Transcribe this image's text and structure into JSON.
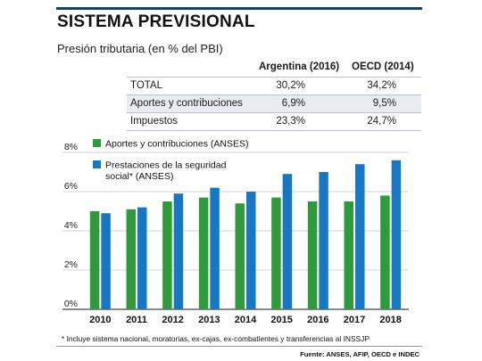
{
  "header": {
    "title": "SISTEMA PREVISIONAL",
    "subtitle": "Presión tributaria (en % del PBI)"
  },
  "table": {
    "columns": [
      "Argentina (2016)",
      "OECD (2014)"
    ],
    "rows": [
      {
        "label": "TOTAL",
        "argentina": "30,2%",
        "oecd": "34,2%"
      },
      {
        "label": "Aportes y contribuciones",
        "argentina": "6,9%",
        "oecd": "9,5%"
      },
      {
        "label": "Impuestos",
        "argentina": "23,3%",
        "oecd": "24,7%"
      }
    ]
  },
  "chart_data": {
    "type": "bar",
    "categories": [
      "2010",
      "2011",
      "2012",
      "2013",
      "2014",
      "2015",
      "2016",
      "2017",
      "2018"
    ],
    "series": [
      {
        "name": "Aportes y contribuciones (ANSES)",
        "color": "#2e9a3c",
        "values": [
          5.0,
          5.1,
          5.5,
          5.7,
          5.4,
          5.7,
          5.5,
          5.5,
          5.8
        ]
      },
      {
        "name": "Prestaciones de la seguridad social* (ANSES)",
        "color": "#1777c2",
        "values": [
          4.9,
          5.2,
          5.9,
          6.2,
          6.0,
          6.9,
          7.0,
          7.4,
          7.6
        ]
      }
    ],
    "legend": [
      "Aportes y contribuciones (ANSES)",
      "Prestaciones de la seguridad",
      "social* (ANSES)"
    ],
    "yticks": [
      "0%",
      "2%",
      "4%",
      "6%",
      "8%"
    ],
    "ylim": [
      0,
      8
    ],
    "grid": true,
    "legend_position": "top-left"
  },
  "footnote": "* Incluye sistema nacional, moratorias, ex-cajas, ex-combatientes y transferencias al INSSJP",
  "source": "Fuente: ANSES, AFIP, OECD e INDEC"
}
